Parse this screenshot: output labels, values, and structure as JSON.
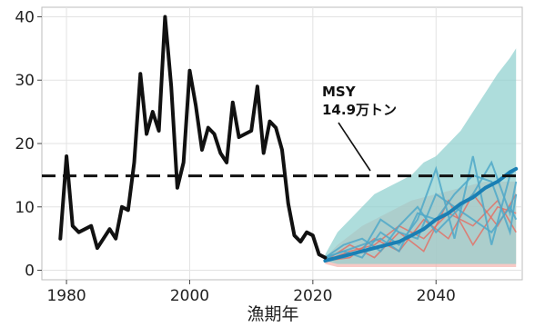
{
  "chart_data": {
    "type": "line",
    "title": "",
    "xlabel": "漁期年",
    "ylabel": "",
    "xlim": [
      1976,
      2054
    ],
    "ylim": [
      -1.5,
      41.5
    ],
    "x_ticks": [
      1980,
      2000,
      2020,
      2040
    ],
    "y_ticks": [
      0,
      10,
      20,
      30,
      40
    ],
    "grid": true,
    "legend": "none",
    "colors": {
      "observed": "#111111",
      "teal_band": "#8fd0cf",
      "pink_band": "#f4b2ad",
      "teal_lines": "#4fa8c8",
      "pink_lines": "#e66b60",
      "median": "#1a7fb4",
      "msy": "#111111",
      "grid": "#e3e3e3"
    },
    "observed": {
      "x": [
        1979,
        1980,
        1981,
        1982,
        1983,
        1984,
        1985,
        1986,
        1987,
        1988,
        1989,
        1990,
        1991,
        1992,
        1993,
        1994,
        1995,
        1996,
        1997,
        1998,
        1999,
        2000,
        2001,
        2002,
        2003,
        2004,
        2005,
        2006,
        2007,
        2008,
        2009,
        2010,
        2011,
        2012,
        2013,
        2014,
        2015,
        2016,
        2017,
        2018,
        2019,
        2020,
        2021,
        2022
      ],
      "y": [
        5,
        18,
        7,
        6,
        6.5,
        7,
        3.5,
        5,
        6.5,
        5,
        10,
        9.5,
        17,
        31,
        21.5,
        25,
        22,
        40,
        29,
        13,
        17,
        31.5,
        26,
        19,
        22.5,
        21.5,
        18.5,
        17,
        26.5,
        21,
        21.5,
        22,
        29,
        18.5,
        23.5,
        22.5,
        19,
        10.5,
        5.5,
        4.5,
        6,
        5.5,
        2.5,
        2
      ]
    },
    "teal_band": {
      "x": [
        2022,
        2024,
        2026,
        2028,
        2030,
        2032,
        2034,
        2036,
        2038,
        2040,
        2042,
        2044,
        2046,
        2048,
        2050,
        2052,
        2053
      ],
      "upper": [
        2.5,
        6,
        8,
        10,
        12,
        13,
        14,
        15,
        17,
        18,
        20,
        22,
        25,
        28,
        31,
        33.5,
        35
      ],
      "lower": [
        1.5,
        1,
        1,
        1,
        1,
        1,
        1,
        1,
        1,
        1,
        1,
        1,
        1,
        1,
        1,
        1,
        1
      ]
    },
    "pink_band": {
      "x": [
        2022,
        2024,
        2026,
        2028,
        2030,
        2032,
        2034,
        2036,
        2038,
        2040,
        2042,
        2044,
        2046,
        2048,
        2050,
        2052,
        2053
      ],
      "upper": [
        2,
        4,
        5.5,
        7,
        8,
        9,
        10,
        11,
        11.5,
        12,
        12.5,
        13,
        13.5,
        14,
        14,
        14,
        14
      ],
      "lower": [
        1,
        0.5,
        0.5,
        0.5,
        0.5,
        0.5,
        0.5,
        0.5,
        0.5,
        0.5,
        0.5,
        0.5,
        0.5,
        0.5,
        0.5,
        0.5,
        0.5
      ]
    },
    "median": {
      "x": [
        2022,
        2024,
        2026,
        2028,
        2030,
        2032,
        2034,
        2036,
        2038,
        2040,
        2042,
        2044,
        2046,
        2048,
        2050,
        2052,
        2053
      ],
      "y": [
        1.5,
        2,
        2.5,
        3,
        3.5,
        4,
        4.5,
        5.5,
        6.5,
        8,
        9,
        10.5,
        11.5,
        13,
        14,
        15.5,
        16
      ]
    },
    "teal_paths": [
      {
        "x": [
          2022,
          2025,
          2028,
          2031,
          2034,
          2037,
          2040,
          2043,
          2046,
          2049,
          2052,
          2053
        ],
        "y": [
          2,
          3,
          2,
          6,
          4,
          8,
          16,
          5,
          18,
          4,
          15,
          16
        ]
      },
      {
        "x": [
          2022,
          2025,
          2028,
          2031,
          2034,
          2037,
          2040,
          2043,
          2046,
          2049,
          2052,
          2053
        ],
        "y": [
          2,
          4,
          5,
          3,
          7,
          10,
          6,
          9,
          12,
          17,
          9,
          14
        ]
      },
      {
        "x": [
          2022,
          2025,
          2028,
          2031,
          2034,
          2037,
          2040,
          2043,
          2046,
          2049,
          2052,
          2053
        ],
        "y": [
          2,
          2,
          3,
          8,
          6,
          5,
          12,
          10,
          8,
          6,
          10,
          8
        ]
      },
      {
        "x": [
          2022,
          2025,
          2028,
          2031,
          2034,
          2037,
          2040,
          2043,
          2046,
          2049,
          2052,
          2053
        ],
        "y": [
          2,
          3,
          4,
          5,
          3,
          9,
          8,
          12,
          15,
          14,
          6,
          12
        ]
      }
    ],
    "pink_paths": [
      {
        "x": [
          2022,
          2026,
          2030,
          2034,
          2038,
          2042,
          2046,
          2050,
          2053
        ],
        "y": [
          1.5,
          4,
          2,
          6,
          3,
          11,
          4,
          10,
          9
        ]
      },
      {
        "x": [
          2022,
          2026,
          2030,
          2034,
          2038,
          2042,
          2046,
          2050,
          2053
        ],
        "y": [
          1.5,
          2,
          5,
          3,
          8,
          5,
          12,
          7,
          12
        ]
      },
      {
        "x": [
          2022,
          2026,
          2030,
          2034,
          2038,
          2042,
          2046,
          2050,
          2053
        ],
        "y": [
          1.5,
          3,
          4,
          7,
          5,
          9,
          7,
          11,
          6
        ]
      }
    ],
    "msy": {
      "value": 14.9,
      "label_line1": "MSY",
      "label_line2": "14.9万トン"
    }
  }
}
